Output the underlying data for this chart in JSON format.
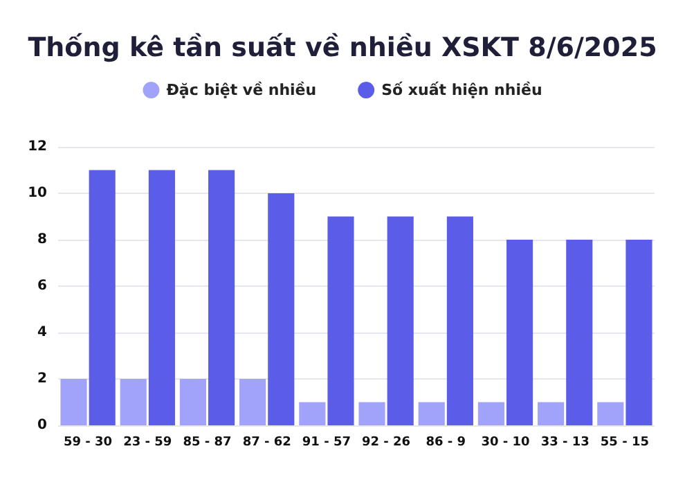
{
  "chart_data": {
    "type": "bar",
    "title": "Thống kê tần suất về nhiều XSKT 8/6/2025",
    "categories": [
      "59 - 30",
      "23 - 59",
      "85 - 87",
      "87 - 62",
      "91 - 57",
      "92 - 26",
      "86 - 9",
      "30 - 10",
      "33 - 13",
      "55 - 15"
    ],
    "series": [
      {
        "name": "Đặc biệt về nhiều",
        "color": "#a1a3fb",
        "values": [
          2,
          2,
          2,
          2,
          1,
          1,
          1,
          1,
          1,
          1
        ]
      },
      {
        "name": "Số xuất hiện nhiều",
        "color": "#5b5ce8",
        "values": [
          11,
          11,
          11,
          10,
          9,
          9,
          9,
          8,
          8,
          8
        ]
      }
    ],
    "ylim": [
      0,
      12
    ],
    "yticks": [
      0,
      2,
      4,
      6,
      8,
      10,
      12
    ],
    "grid": "y",
    "legend": "top"
  }
}
